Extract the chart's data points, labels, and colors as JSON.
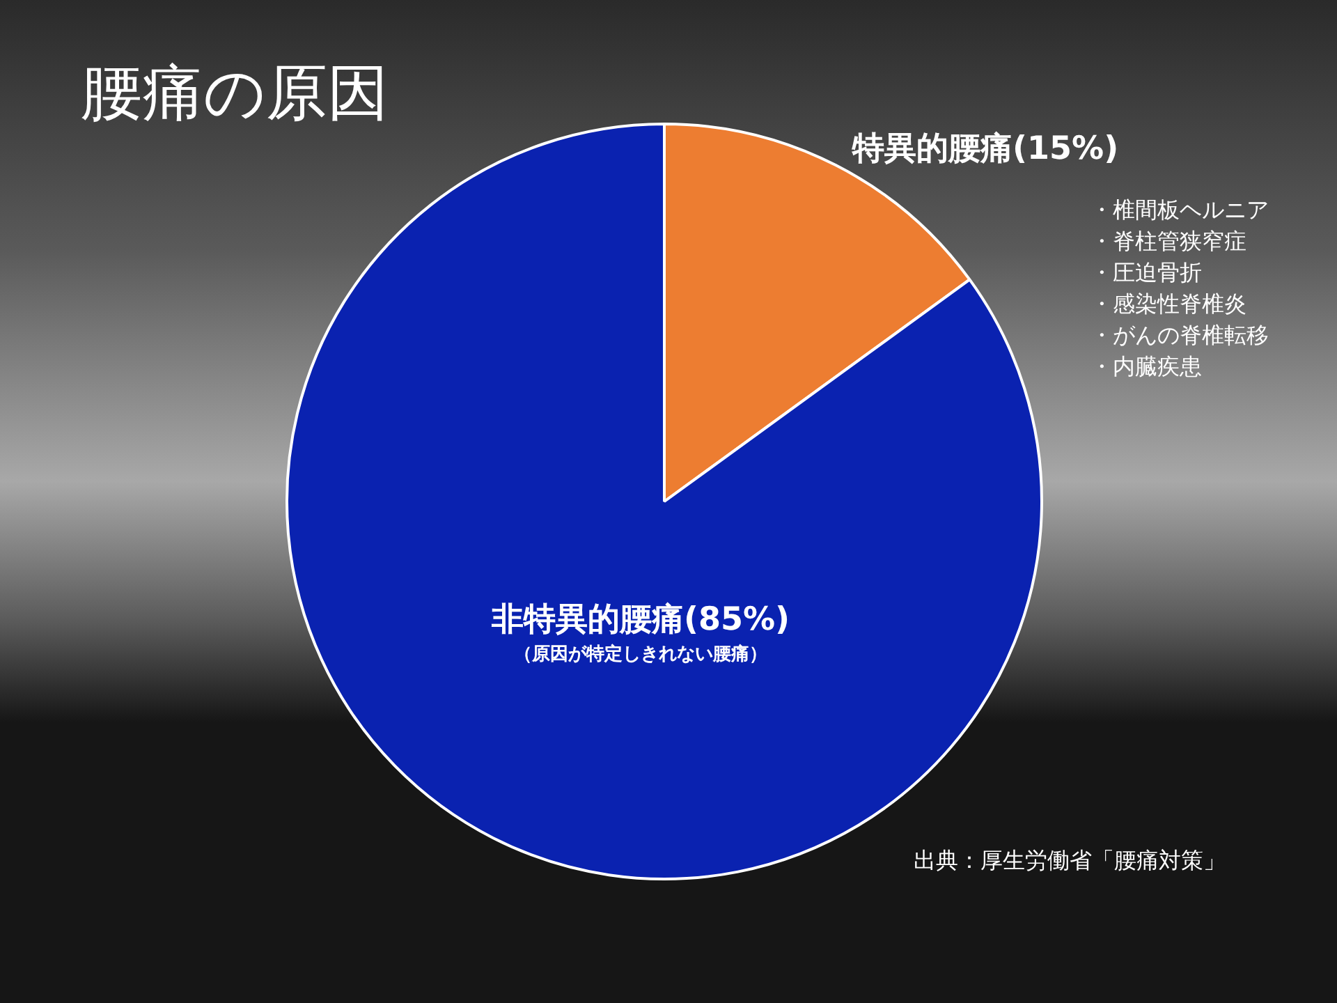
{
  "chart_data": {
    "type": "pie",
    "title": "腰痛の原因",
    "categories": [
      "特異的腰痛",
      "非特異的腰痛"
    ],
    "values": [
      15,
      85
    ],
    "value_labels": [
      "(15%)",
      "(85%)"
    ],
    "colors": [
      "#ed7d31",
      "#0a22b0"
    ],
    "legend": false,
    "annotations": [
      "（原因が特定しきれない腰痛）",
      "・椎間板ヘルニア",
      "・脊柱管狭窄症",
      "・圧迫骨折",
      "・感染性脊椎炎",
      "・がんの脊椎転移",
      "・内臓疾患",
      "出典：厚生労働省「腰痛対策」"
    ]
  }
}
